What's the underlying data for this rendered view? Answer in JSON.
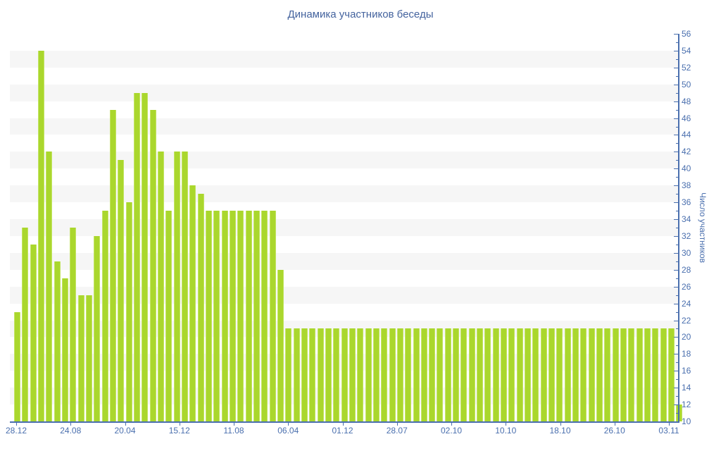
{
  "title": "Динамика участников беседы",
  "chart_data": {
    "type": "bar",
    "title": "Динамика участников беседы",
    "xlabel": "",
    "ylabel": "Число участников",
    "ylim": [
      10,
      56
    ],
    "ytick_step": 2,
    "ytick_labels": [
      "56",
      "54",
      "52",
      "50",
      "48",
      "46",
      "44",
      "42",
      "40",
      "38",
      "36",
      "34",
      "32",
      "30",
      "28",
      "26",
      "24",
      "22",
      "20",
      "18",
      "16",
      "14",
      "12",
      "10"
    ],
    "xtick_labels": [
      "28.12",
      "24.08",
      "20.04",
      "15.12",
      "11.08",
      "06.04",
      "01.12",
      "28.07",
      "02.10",
      "10.10",
      "18.10",
      "26.10",
      "03.11"
    ],
    "legend": "none",
    "grid": "alternating horizontal bands every 2 units",
    "values": [
      23,
      33,
      31,
      54,
      42,
      29,
      27,
      33,
      25,
      25,
      32,
      35,
      47,
      41,
      36,
      49,
      49,
      47,
      42,
      35,
      42,
      42,
      38,
      37,
      35,
      35,
      35,
      35,
      35,
      35,
      35,
      35,
      35,
      28,
      21,
      21,
      21,
      21,
      21,
      21,
      21,
      21,
      21,
      21,
      21,
      21,
      21,
      21,
      21,
      21,
      21,
      21,
      21,
      21,
      21,
      21,
      21,
      21,
      21,
      21,
      21,
      21,
      21,
      21,
      21,
      21,
      21,
      21,
      21,
      21,
      21,
      21,
      21,
      21,
      21,
      21,
      21,
      21,
      21,
      21,
      21,
      21,
      21,
      12
    ],
    "colors": {
      "bar": "#aad72d",
      "bar_edge": "#c3e464",
      "band": "#f6f6f6",
      "axis": "#4a6fae",
      "labels": "#4a6fae",
      "title": "#44639e",
      "background": "#ffffff"
    }
  }
}
